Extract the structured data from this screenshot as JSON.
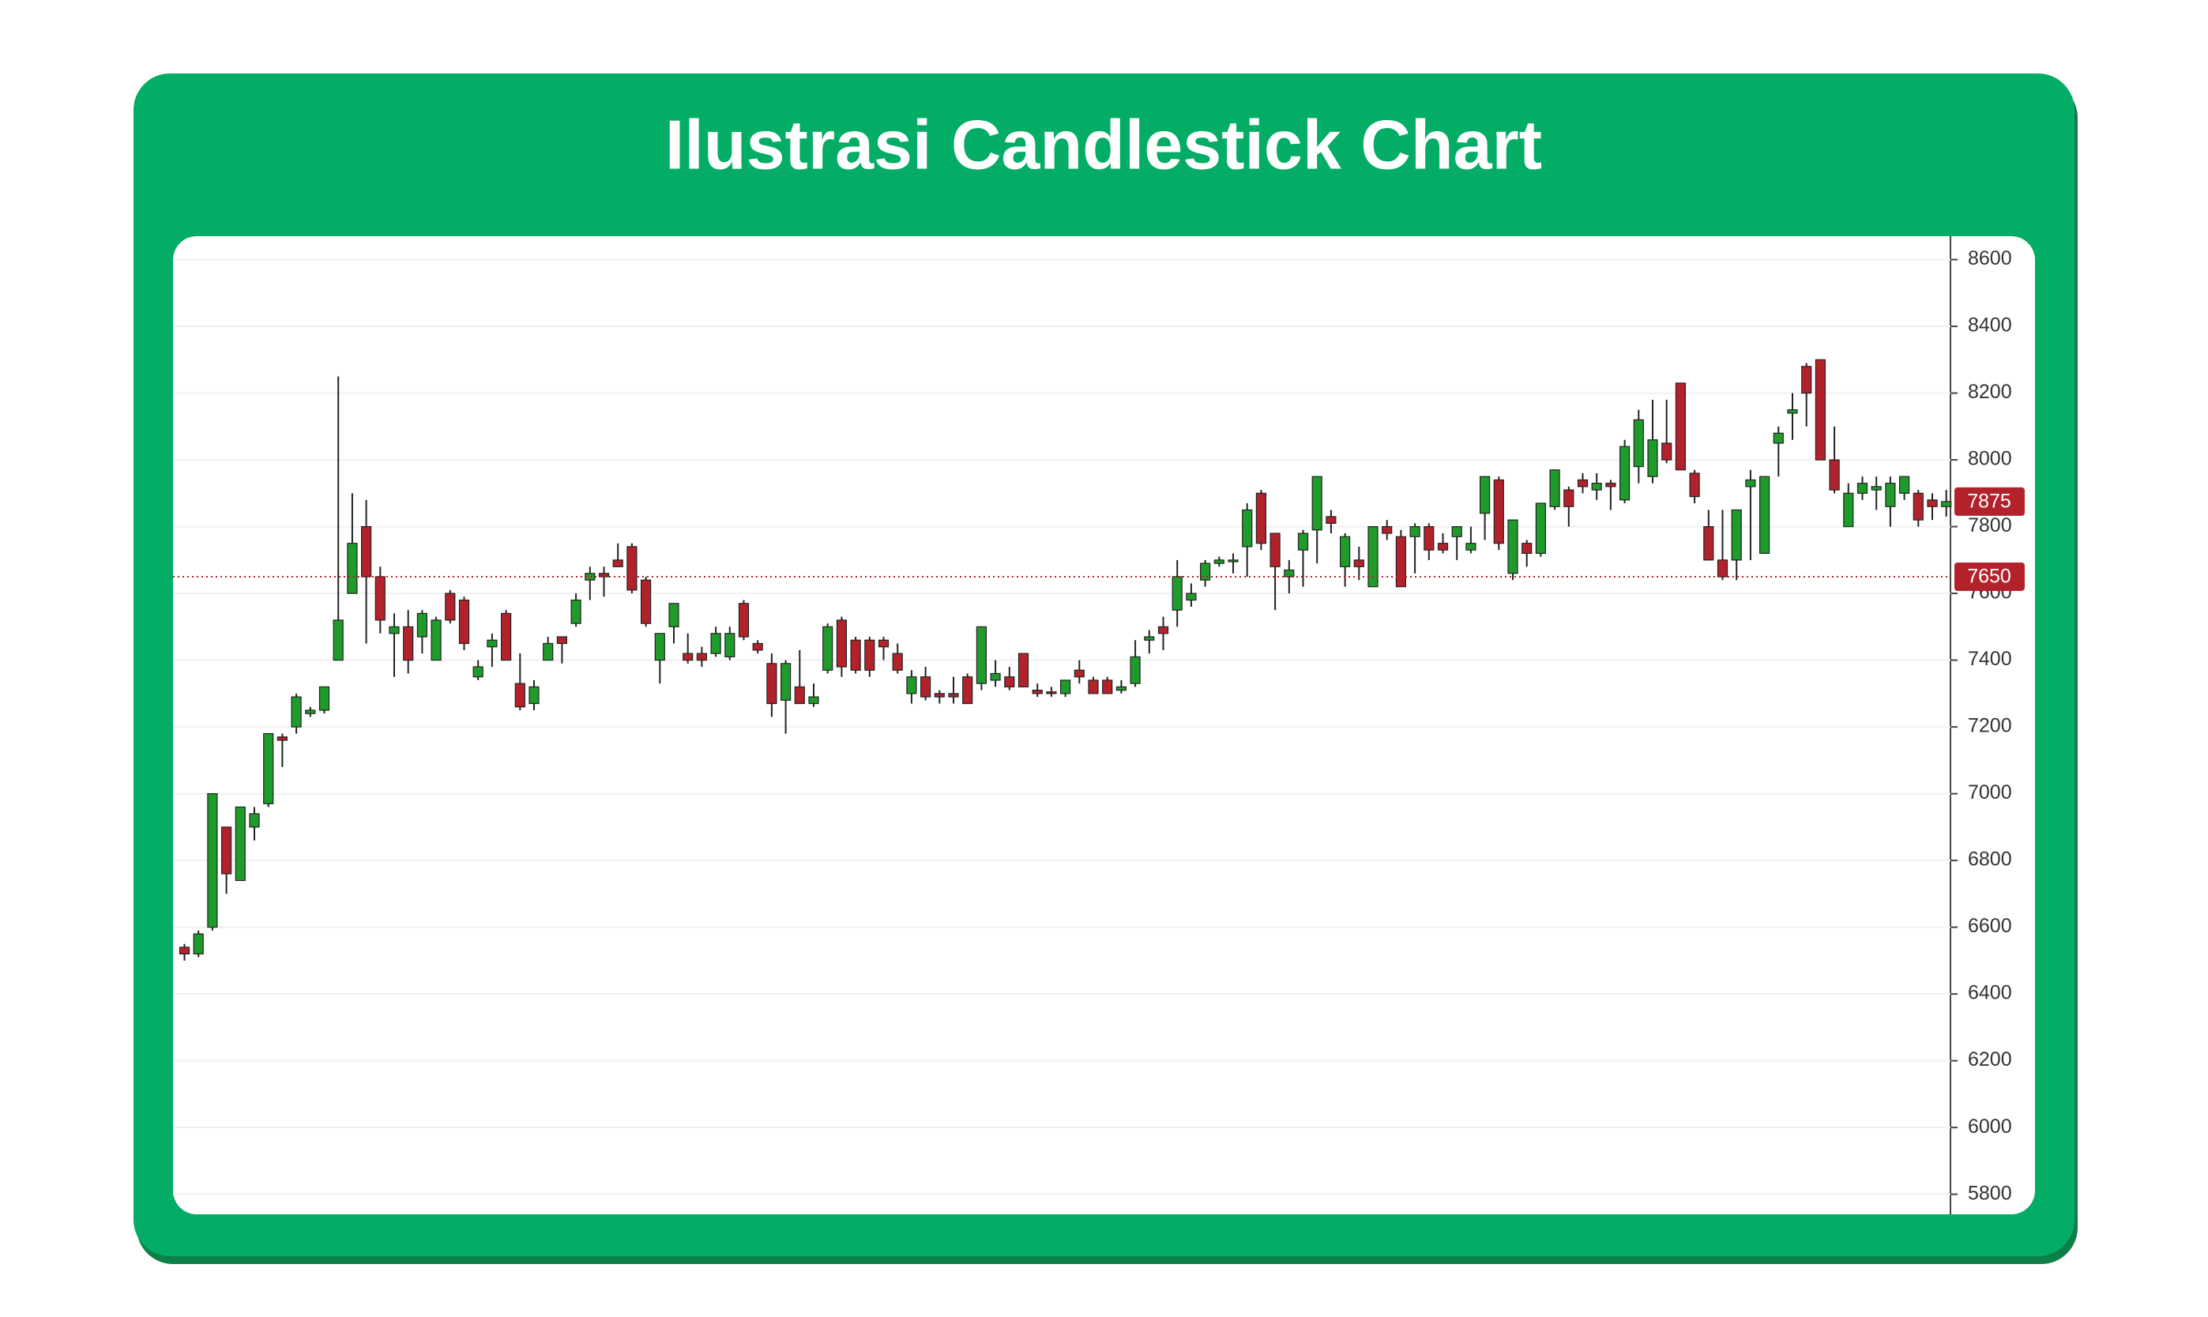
{
  "chart_data": {
    "type": "candlestick",
    "title": "Ilustrasi Candlestick Chart",
    "open": [
      6540,
      6520,
      6600,
      6900,
      6740,
      6900,
      6970,
      7170,
      7200,
      7240,
      7250,
      7400,
      7600,
      7800,
      7650,
      7480,
      7500,
      7470,
      7400,
      7600,
      7580,
      7350,
      7440,
      7540,
      7330,
      7270,
      7400,
      7470,
      7510,
      7640,
      7660,
      7700,
      7740,
      7640,
      7400,
      7500,
      7420,
      7420,
      7420,
      7410,
      7570,
      7450,
      7390,
      7280,
      7320,
      7270,
      7370,
      7520,
      7460,
      7460,
      7460,
      7420,
      7300,
      7350,
      7300,
      7300,
      7350,
      7330,
      7340,
      7350,
      7420,
      7310,
      7305,
      7300,
      7370,
      7340,
      7340,
      7310,
      7330,
      7460,
      7500,
      7550,
      7580,
      7640,
      7690,
      7695,
      7740,
      7900,
      7780,
      7650,
      7730,
      7790,
      7830,
      7680,
      7700,
      7620,
      7800,
      7770,
      7770,
      7800,
      7750,
      7770,
      7730,
      7840,
      7940,
      7660,
      7750,
      7720,
      7860,
      7910,
      7940,
      7910,
      7930,
      7880,
      7980,
      7950,
      8050,
      8230,
      7960,
      7800,
      7700,
      7700,
      7920,
      7720,
      8050,
      8140,
      8280,
      8300,
      8000,
      7800,
      7900,
      7910,
      7860,
      7900,
      7900,
      7880,
      7860
    ],
    "high": [
      6550,
      6590,
      7000,
      6900,
      6960,
      6960,
      7180,
      7180,
      7300,
      7260,
      7320,
      8250,
      7900,
      7880,
      7680,
      7540,
      7550,
      7550,
      7530,
      7610,
      7590,
      7400,
      7480,
      7550,
      7420,
      7340,
      7470,
      7470,
      7600,
      7680,
      7680,
      7750,
      7750,
      7650,
      7480,
      7570,
      7480,
      7440,
      7500,
      7500,
      7580,
      7460,
      7420,
      7400,
      7430,
      7330,
      7510,
      7530,
      7470,
      7470,
      7470,
      7450,
      7370,
      7380,
      7310,
      7350,
      7360,
      7500,
      7400,
      7380,
      7420,
      7330,
      7320,
      7340,
      7400,
      7350,
      7350,
      7340,
      7460,
      7490,
      7530,
      7700,
      7630,
      7700,
      7710,
      7720,
      7870,
      7910,
      7780,
      7700,
      7790,
      7950,
      7850,
      7780,
      7740,
      7800,
      7820,
      7790,
      7810,
      7810,
      7780,
      7800,
      7800,
      7950,
      7950,
      7820,
      7760,
      7870,
      7970,
      7920,
      7960,
      7960,
      7940,
      8060,
      8150,
      8180,
      8180,
      8230,
      7970,
      7850,
      7850,
      7850,
      7970,
      7950,
      8100,
      8200,
      8290,
      8300,
      8100,
      7930,
      7950,
      7950,
      7950,
      7950,
      7910,
      7900,
      7910
    ],
    "low": [
      6500,
      6510,
      6590,
      6700,
      6740,
      6860,
      6960,
      7080,
      7180,
      7230,
      7240,
      7400,
      7600,
      7450,
      7480,
      7350,
      7360,
      7420,
      7400,
      7510,
      7430,
      7340,
      7380,
      7400,
      7250,
      7250,
      7400,
      7390,
      7500,
      7580,
      7590,
      7680,
      7600,
      7500,
      7330,
      7450,
      7390,
      7380,
      7410,
      7400,
      7460,
      7420,
      7230,
      7180,
      7270,
      7260,
      7360,
      7350,
      7360,
      7350,
      7400,
      7360,
      7270,
      7280,
      7270,
      7270,
      7270,
      7310,
      7320,
      7310,
      7320,
      7290,
      7290,
      7290,
      7330,
      7300,
      7300,
      7300,
      7320,
      7420,
      7430,
      7500,
      7560,
      7620,
      7680,
      7660,
      7650,
      7730,
      7550,
      7600,
      7620,
      7690,
      7780,
      7620,
      7640,
      7620,
      7760,
      7620,
      7660,
      7700,
      7720,
      7700,
      7720,
      7760,
      7730,
      7640,
      7680,
      7710,
      7850,
      7800,
      7900,
      7880,
      7850,
      7870,
      7930,
      7930,
      7990,
      7970,
      7870,
      7700,
      7640,
      7640,
      7700,
      7720,
      7950,
      8060,
      8100,
      8000,
      7900,
      7800,
      7880,
      7850,
      7800,
      7880,
      7800,
      7820,
      7830
    ],
    "close": [
      6520,
      6580,
      7000,
      6760,
      6960,
      6940,
      7180,
      7160,
      7290,
      7250,
      7320,
      7520,
      7750,
      7650,
      7520,
      7500,
      7400,
      7540,
      7520,
      7520,
      7450,
      7380,
      7460,
      7400,
      7260,
      7320,
      7450,
      7450,
      7580,
      7660,
      7650,
      7680,
      7610,
      7510,
      7480,
      7570,
      7400,
      7400,
      7480,
      7480,
      7470,
      7430,
      7270,
      7390,
      7270,
      7290,
      7500,
      7380,
      7370,
      7370,
      7440,
      7370,
      7350,
      7290,
      7290,
      7290,
      7270,
      7500,
      7360,
      7320,
      7320,
      7300,
      7300,
      7340,
      7350,
      7300,
      7300,
      7320,
      7410,
      7470,
      7480,
      7650,
      7600,
      7690,
      7700,
      7700,
      7850,
      7750,
      7680,
      7670,
      7780,
      7950,
      7810,
      7770,
      7680,
      7800,
      7780,
      7620,
      7800,
      7730,
      7730,
      7800,
      7750,
      7950,
      7750,
      7820,
      7720,
      7870,
      7970,
      7860,
      7920,
      7930,
      7920,
      8040,
      8120,
      8060,
      8000,
      7970,
      7890,
      7700,
      7650,
      7850,
      7940,
      7950,
      8080,
      8150,
      8200,
      8000,
      7910,
      7900,
      7930,
      7920,
      7930,
      7950,
      7820,
      7860,
      7875
    ],
    "up_color": "#1e9b2a",
    "down_color": "#b3222b",
    "ylim": [
      5740,
      8670
    ],
    "yticks": [
      5800,
      6000,
      6200,
      6400,
      6600,
      6800,
      7000,
      7200,
      7400,
      7600,
      7800,
      8000,
      8200,
      8400,
      8600
    ],
    "grid": true,
    "last_price": 7875,
    "reference_line": 7650
  }
}
